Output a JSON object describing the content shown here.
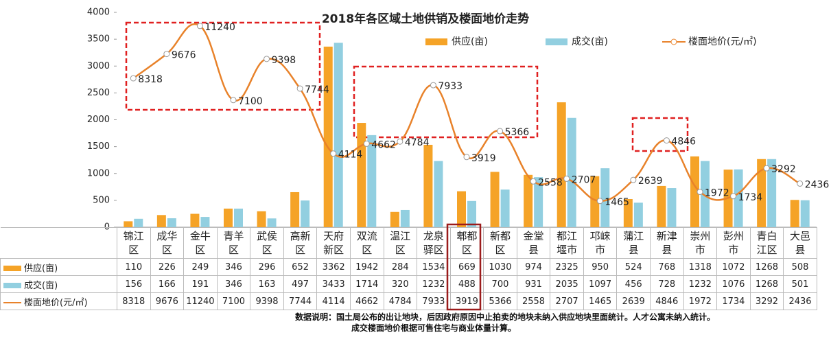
{
  "chart_data": {
    "type": "bar-line",
    "title": "2018年各区域土地供销及楼面地价走势",
    "categories": [
      "锦江区",
      "成华区",
      "金牛区",
      "青羊区",
      "武侯区",
      "高新区",
      "天府新区",
      "双流区",
      "温江区",
      "龙泉驿区",
      "郫都区",
      "新都区",
      "金堂县",
      "都江堰市",
      "邛崃市",
      "蒲江县",
      "新津县",
      "崇州市",
      "彭州市",
      "青白江区",
      "大邑县"
    ],
    "series": [
      {
        "name": "供应(亩)",
        "color": "#f5a327",
        "type": "bar",
        "values": [
          110,
          226,
          249,
          346,
          296,
          652,
          3362,
          1942,
          284,
          1534,
          669,
          1030,
          974,
          2325,
          950,
          524,
          768,
          1318,
          1072,
          1268,
          508
        ]
      },
      {
        "name": "成交(亩)",
        "color": "#92cfe0",
        "type": "bar",
        "values": [
          156,
          166,
          191,
          346,
          163,
          497,
          3433,
          1714,
          320,
          1232,
          488,
          700,
          931,
          2035,
          1097,
          456,
          728,
          1232,
          1076,
          1268,
          501
        ]
      },
      {
        "name": "楼面地价(元/㎡)",
        "color": "#e8822a",
        "type": "line",
        "axis": "y2",
        "values": [
          8318,
          9676,
          11240,
          7100,
          9398,
          7744,
          4114,
          4662,
          4784,
          7933,
          3919,
          5366,
          2558,
          2707,
          1465,
          2639,
          4846,
          1972,
          1734,
          3292,
          2436
        ]
      }
    ],
    "ylim": [
      0,
      4000
    ],
    "yticks": [
      0,
      500,
      1000,
      1500,
      2000,
      2500,
      3000,
      3500,
      4000
    ],
    "y2lim": [
      0,
      12000
    ],
    "grid": false,
    "notes": [
      "数据说明：国土局公布的出让地块，后因政府原因中止拍卖的地块未纳入供应地块里面统计。人才公寓未纳入统计。",
      "成交楼面地价根据可售住宅与商业体量计算。"
    ]
  }
}
